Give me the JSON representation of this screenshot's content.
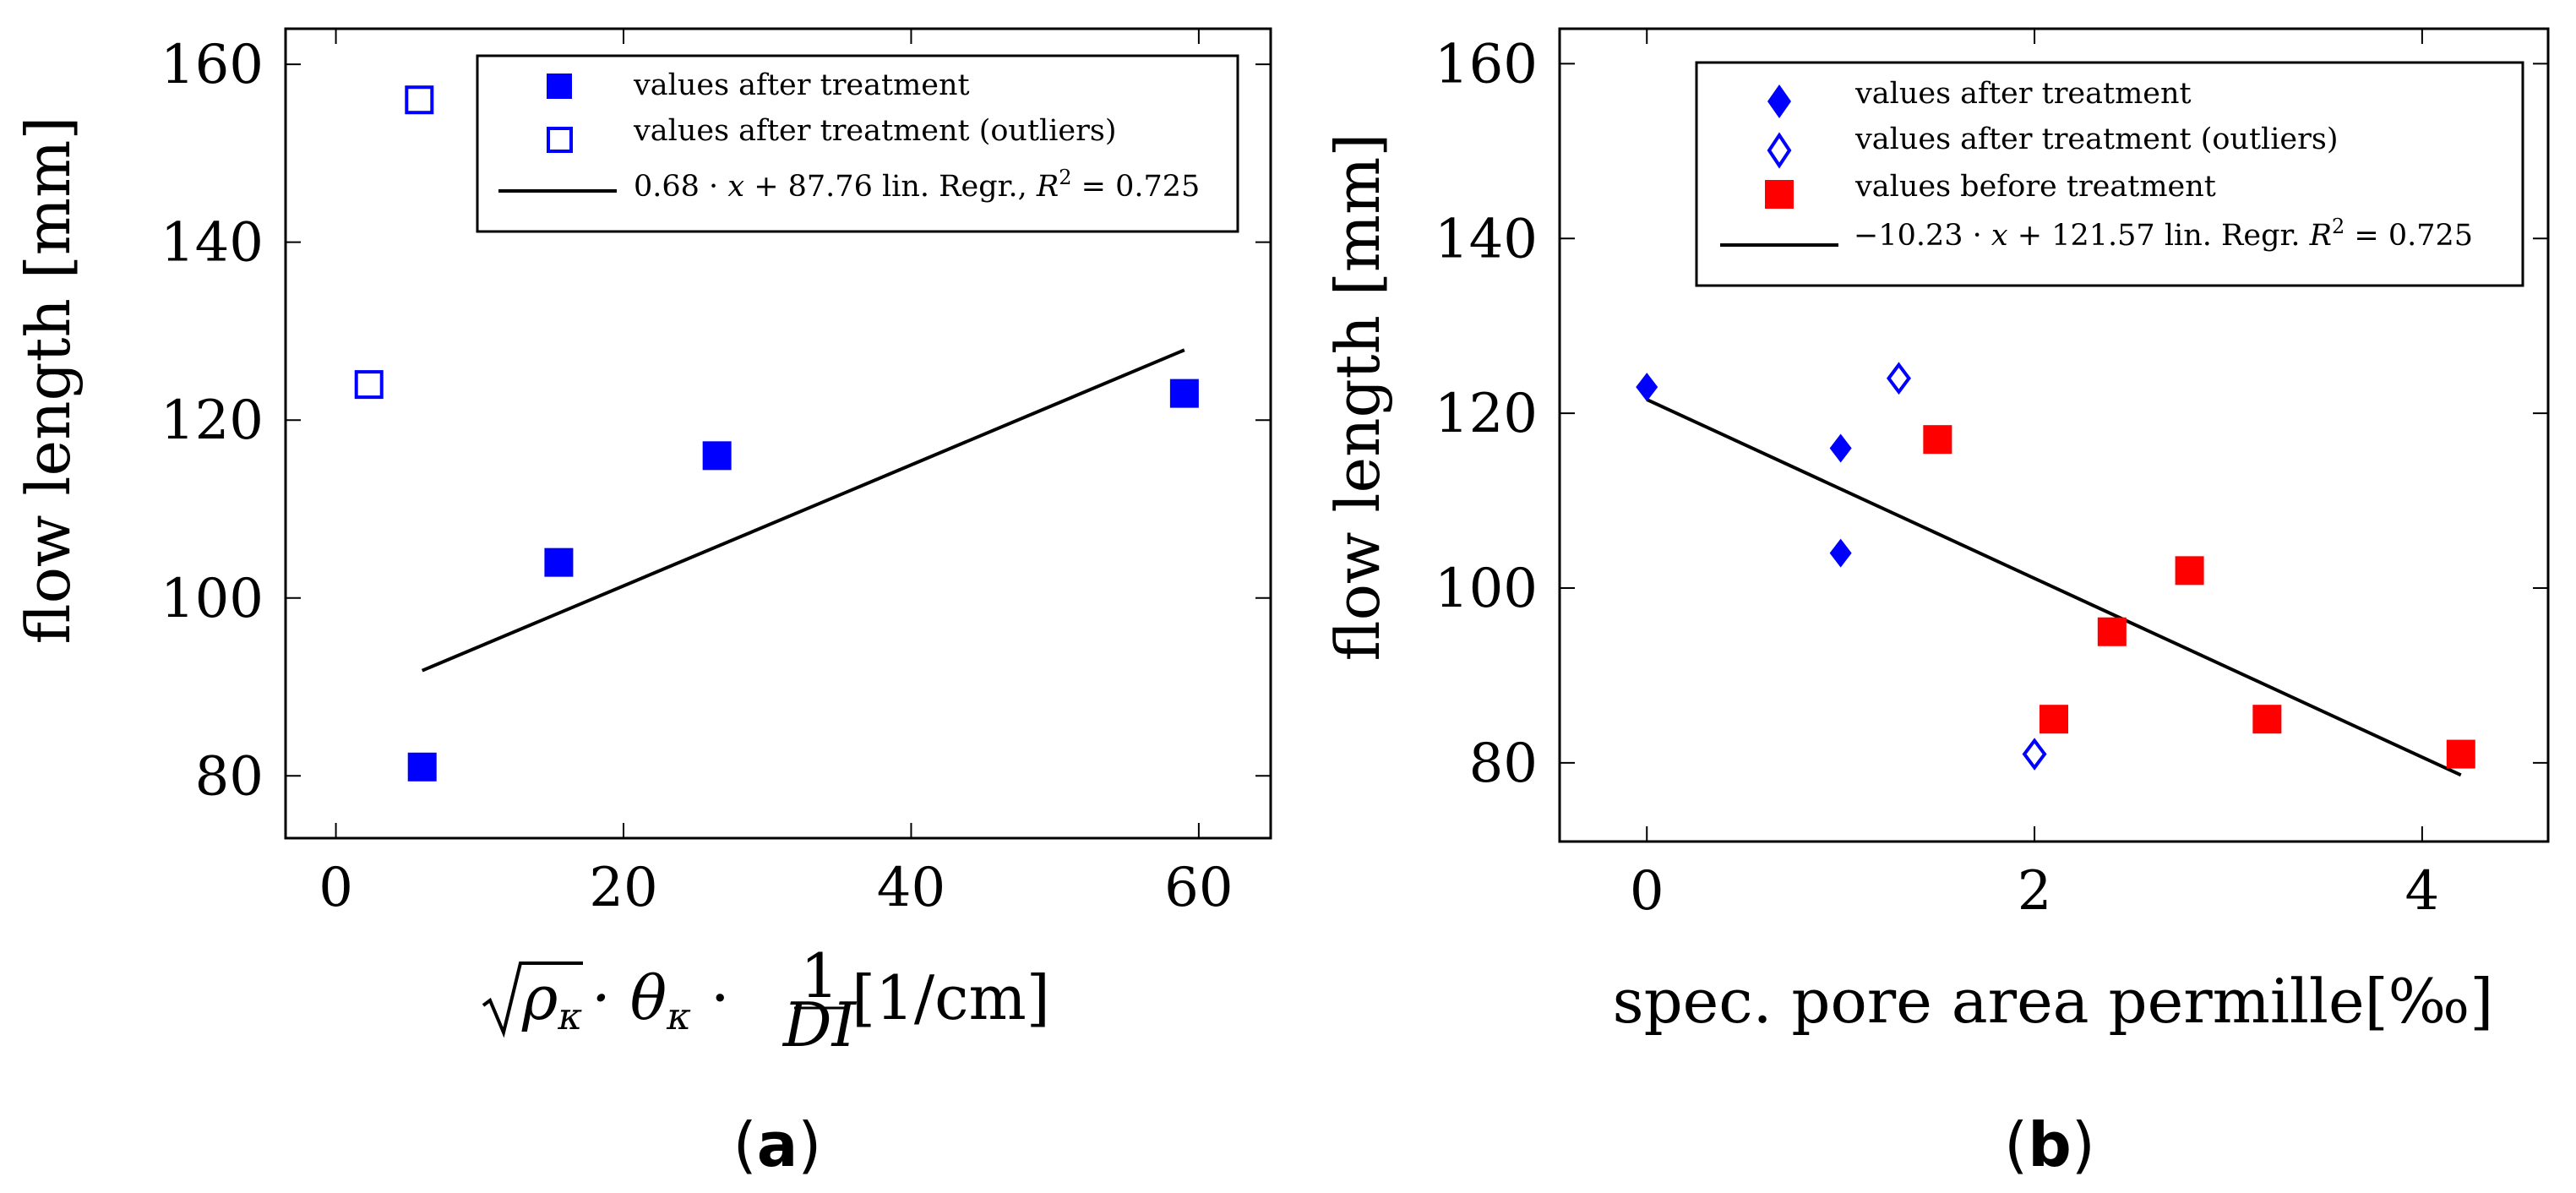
{
  "chart_data": [
    {
      "type": "scatter",
      "panel_caption": "(a)",
      "caption_letter": "a",
      "xlabel_parts": {
        "root": "ρ",
        "root_sub": "κ",
        "mid": " · θ",
        "mid_sub": "κ",
        "dot": " · ",
        "frac_num": "1",
        "frac_den": "DI",
        "unit": "[1/cm]"
      },
      "ylabel": "flow length [mm]",
      "xlim": [
        -3.5,
        65
      ],
      "ylim": [
        73,
        164
      ],
      "xticks": [
        0,
        20,
        40,
        60
      ],
      "yticks": [
        80,
        100,
        120,
        140,
        160
      ],
      "xtick_labels": [
        "0",
        "20",
        "40",
        "60"
      ],
      "ytick_labels": [
        "80",
        "100",
        "120",
        "140",
        "160"
      ],
      "legend_position": "top-right",
      "series": [
        {
          "name": "values after treatment",
          "marker": "filled-square",
          "color": "#0000ff",
          "points": [
            [
              6,
              81
            ],
            [
              15.5,
              104
            ],
            [
              26.5,
              116
            ],
            [
              59,
              123
            ]
          ]
        },
        {
          "name": "values after treatment (outliers)",
          "marker": "open-square",
          "color": "#0000ff",
          "points": [
            [
              2.3,
              124
            ],
            [
              5.8,
              156
            ]
          ]
        }
      ],
      "regression": {
        "label_prefix": "0.68 · ",
        "label_var": "x",
        "label_mid": " + 87.76 lin. Regr., ",
        "label_r": "R",
        "label_sup": "2",
        "label_suffix": " = 0.725",
        "slope": 0.68,
        "intercept": 87.76,
        "x_range": [
          6,
          59
        ],
        "r2": 0.725
      }
    },
    {
      "type": "scatter",
      "panel_caption": "(b)",
      "caption_letter": "b",
      "xlabel": "spec. pore area permille[‰]",
      "ylabel": "flow length [mm]",
      "xlim": [
        -0.45,
        4.65
      ],
      "ylim": [
        71,
        164
      ],
      "xticks": [
        0,
        2,
        4
      ],
      "yticks": [
        80,
        100,
        120,
        140,
        160
      ],
      "xtick_labels": [
        "0",
        "2",
        "4"
      ],
      "ytick_labels": [
        "80",
        "100",
        "120",
        "140",
        "160"
      ],
      "legend_position": "top-right",
      "series": [
        {
          "name": "values after treatment",
          "marker": "filled-diamond",
          "color": "#0000ff",
          "points": [
            [
              0,
              123
            ],
            [
              1,
              116
            ],
            [
              1,
              104
            ]
          ]
        },
        {
          "name": "values after treatment (outliers)",
          "marker": "open-diamond",
          "color": "#0000ff",
          "points": [
            [
              1.3,
              124
            ],
            [
              2,
              81
            ]
          ]
        },
        {
          "name": "values before treatment",
          "marker": "filled-square",
          "color": "#ff0000",
          "points": [
            [
              1.5,
              117
            ],
            [
              2.1,
              85
            ],
            [
              2.4,
              95
            ],
            [
              2.8,
              102
            ],
            [
              3.2,
              85
            ],
            [
              4.2,
              81
            ]
          ]
        }
      ],
      "regression": {
        "label_prefix": "−10.23 · ",
        "label_var": "x",
        "label_mid": " + 121.57 lin. Regr. ",
        "label_r": "R",
        "label_sup": "2",
        "label_suffix": " = 0.725",
        "slope": -10.23,
        "intercept": 121.57,
        "x_range": [
          0,
          4.2
        ],
        "r2": 0.725
      }
    }
  ]
}
